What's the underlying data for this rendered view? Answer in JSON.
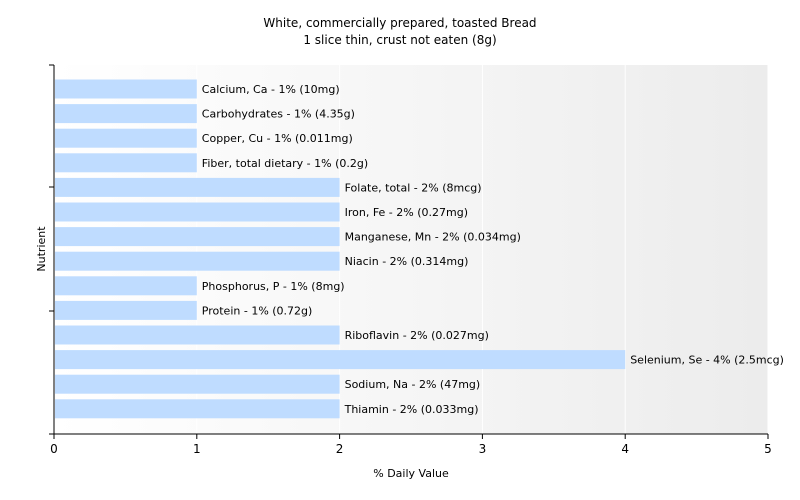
{
  "chart_data": {
    "type": "bar",
    "orientation": "horizontal",
    "title": "White, commercially prepared, toasted Bread",
    "subtitle": "1 slice thin, crust not eaten (8g)",
    "xlabel": "% Daily Value",
    "ylabel": "Nutrient",
    "xlim": [
      0,
      5
    ],
    "xticks": [
      0,
      1,
      2,
      3,
      4,
      5
    ],
    "grid": true,
    "bar_color": "#bfdcff",
    "categories": [
      "Calcium, Ca",
      "Carbohydrates",
      "Copper, Cu",
      "Fiber, total dietary",
      "Folate, total",
      "Iron, Fe",
      "Manganese, Mn",
      "Niacin",
      "Phosphorus, P",
      "Protein",
      "Riboflavin",
      "Selenium, Se",
      "Sodium, Na",
      "Thiamin"
    ],
    "values": [
      1,
      1,
      1,
      1,
      2,
      2,
      2,
      2,
      1,
      1,
      2,
      4,
      2,
      2
    ],
    "labels": [
      "Calcium, Ca - 1% (10mg)",
      "Carbohydrates - 1% (4.35g)",
      "Copper, Cu - 1% (0.011mg)",
      "Fiber, total dietary - 1% (0.2g)",
      "Folate, total - 2% (8mcg)",
      "Iron, Fe - 2% (0.27mg)",
      "Manganese, Mn - 2% (0.034mg)",
      "Niacin - 2% (0.314mg)",
      "Phosphorus, P - 1% (8mg)",
      "Protein - 1% (0.72g)",
      "Riboflavin - 2% (0.027mg)",
      "Selenium, Se - 4% (2.5mcg)",
      "Sodium, Na - 2% (47mg)",
      "Thiamin - 2% (0.033mg)"
    ]
  }
}
